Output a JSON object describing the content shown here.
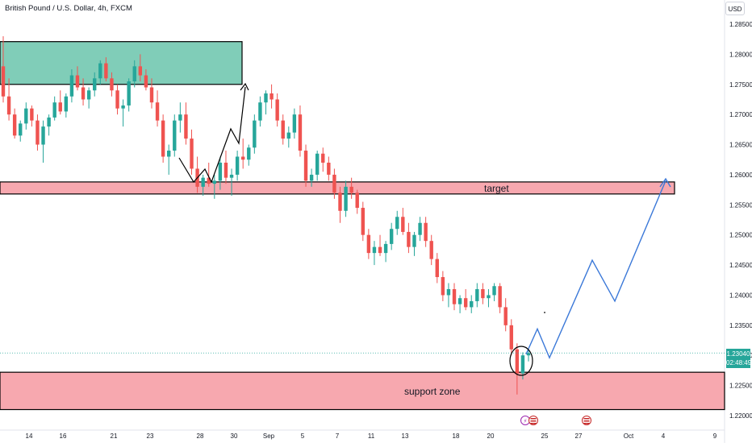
{
  "chart_title": "British Pound / U.S. Dollar, 4h, FXCM",
  "currency_button": "USD",
  "colors": {
    "up": "#26a69a",
    "down": "#ef5350",
    "zone_green": "#80cdb8",
    "zone_red": "#f7a8af",
    "projection": "#3a78d8"
  },
  "current_price": {
    "value": "1.23040",
    "countdown": "02:48:49"
  },
  "chart_data": {
    "type": "candlestick",
    "y_axis_ticks": [
      "1.28500",
      "1.28000",
      "1.27500",
      "1.27000",
      "1.26500",
      "1.26000",
      "1.25500",
      "1.25000",
      "1.24500",
      "1.24000",
      "1.23500",
      "1.23000",
      "1.22500",
      "1.22000"
    ],
    "ylim": [
      1.2195,
      1.2875
    ],
    "x_axis_ticks": [
      "14",
      "16",
      "21",
      "23",
      "28",
      "30",
      "Sep",
      "5",
      "7",
      "11",
      "13",
      "18",
      "20",
      "25",
      "27",
      "Oct",
      "4",
      "9"
    ],
    "zones": [
      {
        "label": "",
        "role": "resistance zone",
        "color": "green",
        "price_top": 1.2821,
        "price_bottom": 1.275
      },
      {
        "label": "target",
        "price_top": 1.2588,
        "price_bottom": 1.2568
      },
      {
        "label": "support zone",
        "price_top": 1.2272,
        "price_bottom": 1.221
      }
    ],
    "projection_path": [
      {
        "t": 0,
        "price": 1.2302
      },
      {
        "t": 1,
        "price": 1.2344
      },
      {
        "t": 2,
        "price": 1.2296
      },
      {
        "t": 3,
        "price": 1.2458
      },
      {
        "t": 4,
        "price": 1.239
      },
      {
        "t": 5,
        "price": 1.259
      }
    ],
    "ohlc": [
      [
        1.278,
        1.283,
        1.272,
        1.273
      ],
      [
        1.273,
        1.276,
        1.269,
        1.27
      ],
      [
        1.27,
        1.271,
        1.266,
        1.2665
      ],
      [
        1.2665,
        1.269,
        1.2655,
        1.2685
      ],
      [
        1.2685,
        1.272,
        1.2675,
        1.271
      ],
      [
        1.271,
        1.2715,
        1.268,
        1.269
      ],
      [
        1.269,
        1.27,
        1.264,
        1.265
      ],
      [
        1.265,
        1.269,
        1.262,
        1.268
      ],
      [
        1.268,
        1.27,
        1.2665,
        1.2695
      ],
      [
        1.2695,
        1.273,
        1.269,
        1.272
      ],
      [
        1.272,
        1.274,
        1.27,
        1.2705
      ],
      [
        1.2705,
        1.2735,
        1.2695,
        1.273
      ],
      [
        1.273,
        1.2775,
        1.272,
        1.2765
      ],
      [
        1.2765,
        1.278,
        1.274,
        1.2745
      ],
      [
        1.2745,
        1.276,
        1.2715,
        1.2725
      ],
      [
        1.2725,
        1.2745,
        1.271,
        1.274
      ],
      [
        1.274,
        1.277,
        1.273,
        1.276
      ],
      [
        1.276,
        1.279,
        1.275,
        1.2785
      ],
      [
        1.2785,
        1.2795,
        1.2755,
        1.276
      ],
      [
        1.276,
        1.277,
        1.273,
        1.274
      ],
      [
        1.274,
        1.275,
        1.27,
        1.271
      ],
      [
        1.271,
        1.2725,
        1.268,
        1.2715
      ],
      [
        1.2715,
        1.276,
        1.2705,
        1.2755
      ],
      [
        1.2755,
        1.279,
        1.2745,
        1.278
      ],
      [
        1.278,
        1.28,
        1.2755,
        1.2765
      ],
      [
        1.2765,
        1.2775,
        1.274,
        1.2745
      ],
      [
        1.2745,
        1.276,
        1.271,
        1.272
      ],
      [
        1.272,
        1.274,
        1.268,
        1.269
      ],
      [
        1.269,
        1.27,
        1.262,
        1.263
      ],
      [
        1.263,
        1.265,
        1.26,
        1.264
      ],
      [
        1.264,
        1.27,
        1.263,
        1.269
      ],
      [
        1.269,
        1.272,
        1.267,
        1.27
      ],
      [
        1.27,
        1.272,
        1.265,
        1.266
      ],
      [
        1.266,
        1.2675,
        1.26,
        1.261
      ],
      [
        1.261,
        1.263,
        1.257,
        1.258
      ],
      [
        1.258,
        1.26,
        1.2565,
        1.2595
      ],
      [
        1.2595,
        1.262,
        1.258,
        1.2585
      ],
      [
        1.2585,
        1.26,
        1.256,
        1.259
      ],
      [
        1.259,
        1.263,
        1.2575,
        1.262
      ],
      [
        1.262,
        1.264,
        1.2585,
        1.2595
      ],
      [
        1.2595,
        1.261,
        1.2565,
        1.26
      ],
      [
        1.26,
        1.264,
        1.259,
        1.263
      ],
      [
        1.263,
        1.266,
        1.261,
        1.2625
      ],
      [
        1.2625,
        1.265,
        1.2615,
        1.2645
      ],
      [
        1.2645,
        1.27,
        1.2635,
        1.269
      ],
      [
        1.269,
        1.273,
        1.268,
        1.272
      ],
      [
        1.272,
        1.274,
        1.27,
        1.2735
      ],
      [
        1.2735,
        1.275,
        1.271,
        1.2725
      ],
      [
        1.2725,
        1.2735,
        1.268,
        1.269
      ],
      [
        1.269,
        1.27,
        1.265,
        1.266
      ],
      [
        1.266,
        1.268,
        1.2645,
        1.267
      ],
      [
        1.267,
        1.271,
        1.266,
        1.27
      ],
      [
        1.27,
        1.2715,
        1.263,
        1.264
      ],
      [
        1.264,
        1.265,
        1.258,
        1.259
      ],
      [
        1.259,
        1.261,
        1.258,
        1.26
      ],
      [
        1.26,
        1.264,
        1.259,
        1.2635
      ],
      [
        1.2635,
        1.2645,
        1.2605,
        1.262
      ],
      [
        1.262,
        1.263,
        1.259,
        1.26
      ],
      [
        1.26,
        1.261,
        1.256,
        1.257
      ],
      [
        1.257,
        1.258,
        1.252,
        1.254
      ],
      [
        1.254,
        1.259,
        1.253,
        1.258
      ],
      [
        1.258,
        1.2595,
        1.256,
        1.257
      ],
      [
        1.257,
        1.2575,
        1.2535,
        1.2545
      ],
      [
        1.2545,
        1.2555,
        1.249,
        1.25
      ],
      [
        1.25,
        1.251,
        1.246,
        1.247
      ],
      [
        1.247,
        1.249,
        1.245,
        1.248
      ],
      [
        1.248,
        1.25,
        1.2465,
        1.247
      ],
      [
        1.247,
        1.249,
        1.2455,
        1.2485
      ],
      [
        1.2485,
        1.252,
        1.2475,
        1.251
      ],
      [
        1.251,
        1.254,
        1.25,
        1.253
      ],
      [
        1.253,
        1.2545,
        1.25,
        1.2505
      ],
      [
        1.2505,
        1.252,
        1.247,
        1.248
      ],
      [
        1.248,
        1.2505,
        1.2465,
        1.25
      ],
      [
        1.25,
        1.253,
        1.249,
        1.252
      ],
      [
        1.252,
        1.253,
        1.248,
        1.249
      ],
      [
        1.249,
        1.25,
        1.245,
        1.246
      ],
      [
        1.246,
        1.247,
        1.242,
        1.243
      ],
      [
        1.243,
        1.244,
        1.239,
        1.24
      ],
      [
        1.24,
        1.242,
        1.238,
        1.241
      ],
      [
        1.241,
        1.242,
        1.2375,
        1.2385
      ],
      [
        1.2385,
        1.24,
        1.237,
        1.2395
      ],
      [
        1.2395,
        1.241,
        1.2375,
        1.238
      ],
      [
        1.238,
        1.24,
        1.237,
        1.239
      ],
      [
        1.239,
        1.242,
        1.238,
        1.241
      ],
      [
        1.241,
        1.242,
        1.2385,
        1.2395
      ],
      [
        1.2395,
        1.241,
        1.238,
        1.24
      ],
      [
        1.24,
        1.242,
        1.239,
        1.2415
      ],
      [
        1.2415,
        1.242,
        1.237,
        1.238
      ],
      [
        1.238,
        1.2395,
        1.234,
        1.235
      ],
      [
        1.235,
        1.236,
        1.23,
        1.231
      ],
      [
        1.231,
        1.232,
        1.2235,
        1.227
      ],
      [
        1.227,
        1.2305,
        1.226,
        1.23
      ],
      [
        1.23,
        1.231,
        1.229,
        1.2304
      ]
    ]
  }
}
